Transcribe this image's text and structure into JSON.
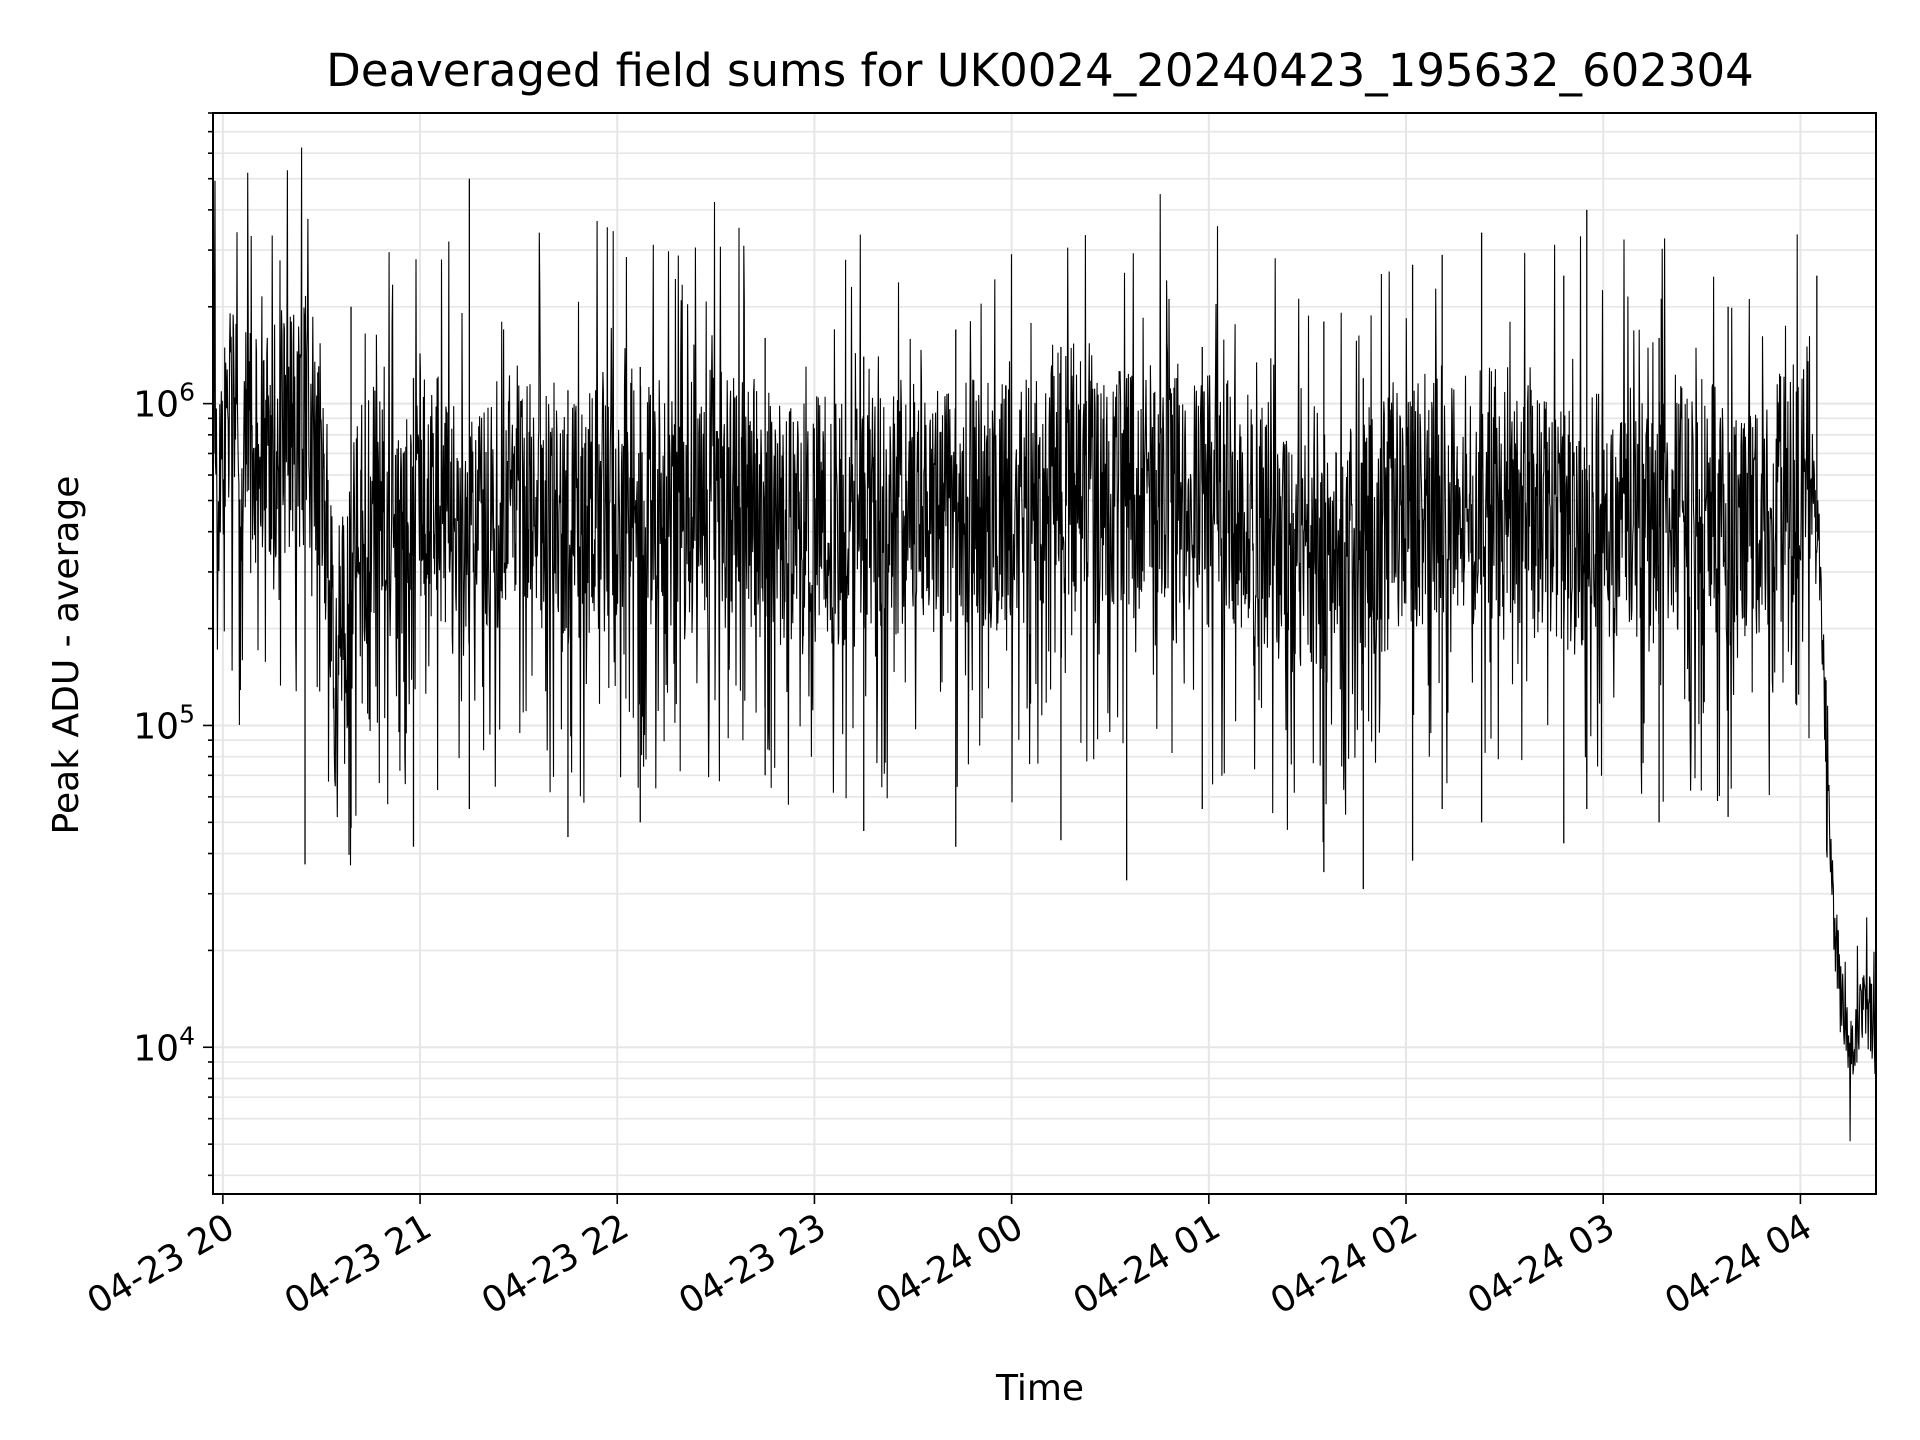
{
  "chart_data": {
    "type": "line",
    "title": "Deaveraged field sums for UK0024_20240423_195632_602304",
    "xlabel": "Time",
    "ylabel": "Peak ADU - average",
    "x_ticks": [
      "04-23 20",
      "04-23 21",
      "04-23 22",
      "04-23 23",
      "04-24 00",
      "04-24 01",
      "04-24 02",
      "04-24 03",
      "04-24 04"
    ],
    "x_tick_times": [
      "2024-04-23T20:00",
      "2024-04-23T21:00",
      "2024-04-23T22:00",
      "2024-04-23T23:00",
      "2024-04-24T00:00",
      "2024-04-24T01:00",
      "2024-04-24T02:00",
      "2024-04-24T03:00",
      "2024-04-24T04:00"
    ],
    "xlim": [
      "2024-04-23T19:57",
      "2024-04-24T04:23"
    ],
    "y_scale": "log",
    "ylim": [
      3500,
      8000000
    ],
    "y_ticks": [
      {
        "value": 10000,
        "base": "10",
        "exp": "4"
      },
      {
        "value": 100000,
        "base": "10",
        "exp": "5"
      },
      {
        "value": 1000000,
        "base": "10",
        "exp": "6"
      }
    ],
    "grid": true,
    "line_color": "#000000",
    "grid_color": "#e6e6e6",
    "series": [
      {
        "x": [
          "2024-04-23T19:57",
          "2024-04-23T20:00",
          "2024-04-23T20:05",
          "2024-04-23T20:10",
          "2024-04-23T20:15",
          "2024-04-23T20:20",
          "2024-04-23T20:25",
          "2024-04-23T20:28",
          "2024-04-23T20:30",
          "2024-04-23T20:35",
          "2024-04-23T20:40",
          "2024-04-23T20:45",
          "2024-04-23T20:50",
          "2024-04-23T20:55",
          "2024-04-23T21:00",
          "2024-04-23T21:05",
          "2024-04-23T21:10",
          "2024-04-23T21:15",
          "2024-04-23T21:20",
          "2024-04-23T21:25",
          "2024-04-23T21:30",
          "2024-04-23T21:35",
          "2024-04-23T21:40",
          "2024-04-23T21:45",
          "2024-04-23T21:50",
          "2024-04-23T21:55",
          "2024-04-23T22:00",
          "2024-04-23T22:10",
          "2024-04-23T22:20",
          "2024-04-23T22:30",
          "2024-04-23T22:40",
          "2024-04-23T22:50",
          "2024-04-23T23:00",
          "2024-04-23T23:10",
          "2024-04-23T23:20",
          "2024-04-23T23:30",
          "2024-04-23T23:40",
          "2024-04-23T23:50",
          "2024-04-24T00:00",
          "2024-04-24T00:10",
          "2024-04-24T00:20",
          "2024-04-24T00:30",
          "2024-04-24T00:40",
          "2024-04-24T00:50",
          "2024-04-24T01:00",
          "2024-04-24T01:10",
          "2024-04-24T01:20",
          "2024-04-24T01:30",
          "2024-04-24T01:40",
          "2024-04-24T01:50",
          "2024-04-24T02:00",
          "2024-04-24T02:10",
          "2024-04-24T02:20",
          "2024-04-24T02:30",
          "2024-04-24T02:40",
          "2024-04-24T02:50",
          "2024-04-24T03:00",
          "2024-04-24T03:10",
          "2024-04-24T03:20",
          "2024-04-24T03:30",
          "2024-04-24T03:40",
          "2024-04-24T03:50",
          "2024-04-24T04:00",
          "2024-04-24T04:03",
          "2024-04-24T04:06",
          "2024-04-24T04:09",
          "2024-04-24T04:12",
          "2024-04-24T04:15",
          "2024-04-24T04:18",
          "2024-04-24T04:21",
          "2024-04-24T04:23"
        ],
        "y": [
          700000,
          750000,
          800000,
          700000,
          850000,
          750000,
          900000,
          800000,
          600000,
          120000,
          350000,
          500000,
          400000,
          450000,
          600000,
          500000,
          400000,
          350000,
          450000,
          500000,
          550000,
          500000,
          450000,
          400000,
          450000,
          500000,
          550000,
          500000,
          450000,
          550000,
          500000,
          400000,
          450000,
          400000,
          450000,
          500000,
          450000,
          500000,
          450000,
          550000,
          650000,
          500000,
          550000,
          600000,
          500000,
          450000,
          400000,
          300000,
          350000,
          400000,
          450000,
          550000,
          500000,
          550000,
          450000,
          400000,
          450000,
          400000,
          450000,
          500000,
          400000,
          450000,
          600000,
          700000,
          300000,
          40000,
          15000,
          9000,
          12000,
          13000,
          11000
        ]
      }
    ],
    "spikes": [
      {
        "x": "2024-04-23T20:25",
        "low": 37000,
        "high": 1900000
      },
      {
        "x": "2024-04-23T20:39",
        "low": 48000,
        "high": 2000000
      },
      {
        "x": "2024-04-23T20:58",
        "low": 42000,
        "high": 1200000
      },
      {
        "x": "2024-04-23T21:15",
        "low": 55000,
        "high": 5000000
      },
      {
        "x": "2024-04-23T21:45",
        "low": 45000,
        "high": 1100000
      },
      {
        "x": "2024-04-23T22:07",
        "low": 50000,
        "high": 1300000
      },
      {
        "x": "2024-04-23T22:45",
        "low": 70000,
        "high": 1600000
      },
      {
        "x": "2024-04-23T23:15",
        "low": 47000,
        "high": 1400000
      },
      {
        "x": "2024-04-23T23:43",
        "low": 42000,
        "high": 1700000
      },
      {
        "x": "2024-04-24T00:15",
        "low": 44000,
        "high": 1500000
      },
      {
        "x": "2024-04-24T00:35",
        "low": 33000,
        "high": 1200000
      },
      {
        "x": "2024-04-24T00:58",
        "low": 55000,
        "high": 1500000
      },
      {
        "x": "2024-04-24T01:35",
        "low": 35000,
        "high": 1800000
      },
      {
        "x": "2024-04-24T01:47",
        "low": 31000,
        "high": 1200000
      },
      {
        "x": "2024-04-24T02:02",
        "low": 38000,
        "high": 2700000
      },
      {
        "x": "2024-04-24T02:11",
        "low": 55000,
        "high": 2900000
      },
      {
        "x": "2024-04-24T02:23",
        "low": 50000,
        "high": 3400000
      },
      {
        "x": "2024-04-24T02:48",
        "low": 43000,
        "high": 2500000
      },
      {
        "x": "2024-04-24T02:55",
        "low": 55000,
        "high": 4000000
      },
      {
        "x": "2024-04-24T03:17",
        "low": 50000,
        "high": 1600000
      },
      {
        "x": "2024-04-24T03:38",
        "low": 52000,
        "high": 2000000
      },
      {
        "x": "2024-04-24T04:05",
        "low": 400000,
        "high": 2500000
      }
    ]
  }
}
